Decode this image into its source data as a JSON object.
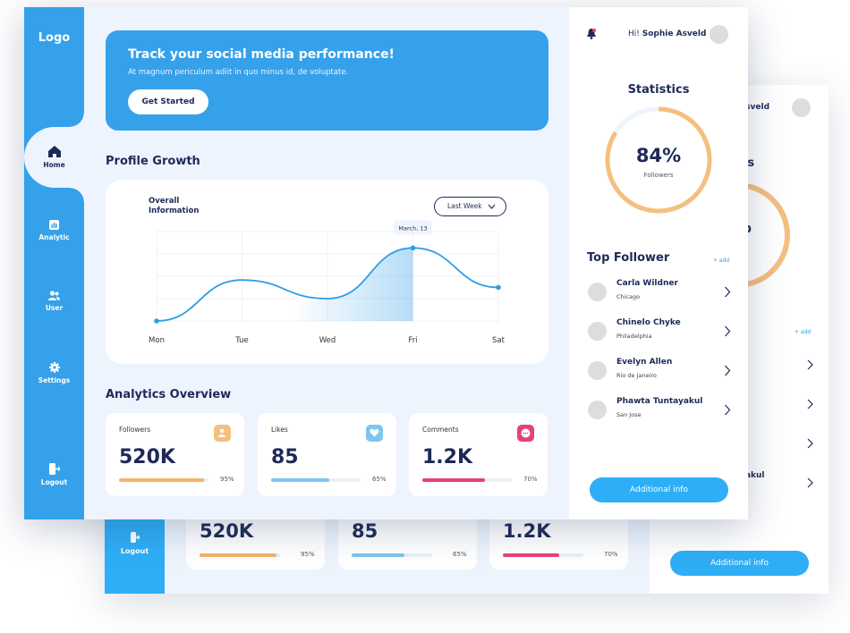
{
  "back_window": {
    "logout_label": "Logout",
    "greeting_name": "e Asveld",
    "stats_title_partial": "tics",
    "ring_value_partial": "%",
    "ring_sub_partial": "rs",
    "add_label": "+ add",
    "follower_partials": [
      "er",
      "yke",
      "n",
      "tayakul"
    ],
    "metrics": [
      {
        "value": "520K",
        "percent": 95,
        "percent_label": "95%",
        "color": "#f4b26b"
      },
      {
        "value": "85",
        "percent": 65,
        "percent_label": "65%",
        "color": "#7cc6ee"
      },
      {
        "value": "1.2K",
        "percent": 70,
        "percent_label": "70%",
        "color": "#e8417a"
      }
    ],
    "additional_info_label": "Additional info"
  },
  "sidebar": {
    "logo": "Logo",
    "items": [
      {
        "label": "Home",
        "icon": "home-icon",
        "active": true
      },
      {
        "label": "Analytic",
        "icon": "bar-chart-icon",
        "active": false
      },
      {
        "label": "User",
        "icon": "users-icon",
        "active": false
      },
      {
        "label": "Settings",
        "icon": "gear-icon",
        "active": false
      },
      {
        "label": "Logout",
        "icon": "logout-icon",
        "active": false
      }
    ]
  },
  "banner": {
    "title": "Track your social media performance!",
    "subtitle": "At magnum periculum adiit in quo minus id, de voluptate.",
    "button_label": "Get Started"
  },
  "profile_growth": {
    "section_title": "Profile Growth",
    "card_title": "Overall Information",
    "range_select": "Last Week",
    "tooltip": "March, 13"
  },
  "chart_data": {
    "type": "line",
    "title": "Overall Information",
    "categories": [
      "Mon",
      "Tue",
      "Wed",
      "Fri",
      "Sat"
    ],
    "series": [
      {
        "values": [
          0.0,
          0.55,
          0.3,
          0.98,
          0.45
        ]
      }
    ],
    "ylim": [
      0,
      1.2
    ],
    "highlight_index": 3,
    "grid": true,
    "accent": "#2f9ee8"
  },
  "analytics": {
    "section_title": "Analytics Overview",
    "cards": [
      {
        "label": "Followers",
        "value": "520K",
        "percent": 95,
        "percent_label": "95%",
        "color": "#f4b26b",
        "icon": "user-icon"
      },
      {
        "label": "Likes",
        "value": "85",
        "percent": 65,
        "percent_label": "65%",
        "color": "#7cc6ee",
        "icon": "heart-icon"
      },
      {
        "label": "Comments",
        "value": "1.2K",
        "percent": 70,
        "percent_label": "70%",
        "color": "#e8417a",
        "icon": "comment-icon"
      }
    ]
  },
  "right_panel": {
    "greeting_prefix": "Hi!",
    "greeting_name": "Sophie Asveld",
    "statistics_title": "Statistics",
    "ring": {
      "value_label": "84%",
      "percent": 84,
      "sublabel": "Followers",
      "color": "#f4c07f"
    },
    "top_follower_title": "Top Follower",
    "add_label": "+ add",
    "followers": [
      {
        "name": "Carla Wildner",
        "city": "Chicago"
      },
      {
        "name": "Chinelo Chyke",
        "city": "Philadelphia"
      },
      {
        "name": "Evelyn Allen",
        "city": "Rio de Janeiro"
      },
      {
        "name": "Phawta Tuntayakul",
        "city": "San Jose"
      }
    ],
    "additional_info_label": "Additional info"
  }
}
